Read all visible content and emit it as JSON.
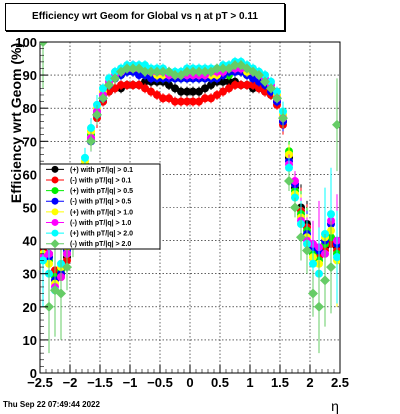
{
  "title": "Efficiency wrt Geom for Global vs η at pT > 0.11",
  "timestamp": "Thu Sep 22 07:49:44 2022",
  "chart_data": {
    "type": "scatter",
    "title": "Efficiency wrt Geom for Global vs η at pT > 0.11",
    "xlabel": "η",
    "ylabel": "Efficiency wrt Geom (%)",
    "xlim": [
      -2.5,
      2.5
    ],
    "ylim": [
      0,
      100
    ],
    "xticks": [
      "−2.5",
      "−2",
      "−1.5",
      "−1",
      "−0.5",
      "0",
      "0.5",
      "1",
      "1.5",
      "2",
      "2.5"
    ],
    "xtick_values": [
      -2.5,
      -2,
      -1.5,
      -1,
      -0.5,
      0,
      0.5,
      1,
      1.5,
      2,
      2.5
    ],
    "yticks": [
      "0",
      "10",
      "20",
      "30",
      "40",
      "50",
      "60",
      "70",
      "80",
      "90",
      "100"
    ],
    "ytick_values": [
      0,
      10,
      20,
      30,
      40,
      50,
      60,
      70,
      80,
      90,
      100
    ],
    "grid": true,
    "legend_placement": "middle-left",
    "series": [
      {
        "name": "(+) with pT/|q| > 0.1",
        "color": "#000000",
        "marker": "circle",
        "x": [
          -2.45,
          -2.35,
          -2.25,
          -2.15,
          -2.05,
          -1.95,
          -1.85,
          -1.75,
          -1.65,
          -1.55,
          -1.45,
          -1.35,
          -1.25,
          -1.15,
          -1.05,
          -0.95,
          -0.85,
          -0.75,
          -0.65,
          -0.55,
          -0.45,
          -0.35,
          -0.25,
          -0.15,
          -0.05,
          0.05,
          0.15,
          0.25,
          0.35,
          0.45,
          0.55,
          0.65,
          0.75,
          0.85,
          0.95,
          1.05,
          1.15,
          1.25,
          1.35,
          1.45,
          1.55,
          1.65,
          1.75,
          1.85,
          1.95,
          2.05,
          2.15,
          2.25,
          2.35,
          2.45
        ],
        "y": [
          38,
          36,
          30,
          30,
          35,
          46,
          52,
          62,
          70,
          78,
          82,
          85,
          86,
          86,
          87,
          87,
          87,
          88,
          88,
          88,
          88,
          87,
          86,
          85,
          85,
          85,
          85,
          86,
          87,
          88,
          88,
          88,
          88,
          87,
          87,
          86,
          86,
          85,
          84,
          82,
          76,
          65,
          56,
          50,
          45,
          37,
          36,
          38,
          40,
          38
        ]
      },
      {
        "name": "(-) with pT/|q| > 0.1",
        "color": "#ff0000",
        "marker": "circle",
        "x": [
          -2.45,
          -2.35,
          -2.25,
          -2.15,
          -2.05,
          -1.95,
          -1.85,
          -1.75,
          -1.65,
          -1.55,
          -1.45,
          -1.35,
          -1.25,
          -1.15,
          -1.05,
          -0.95,
          -0.85,
          -0.75,
          -0.65,
          -0.55,
          -0.45,
          -0.35,
          -0.25,
          -0.15,
          -0.05,
          0.05,
          0.15,
          0.25,
          0.35,
          0.45,
          0.55,
          0.65,
          0.75,
          0.85,
          0.95,
          1.05,
          1.15,
          1.25,
          1.35,
          1.45,
          1.55,
          1.65,
          1.75,
          1.85,
          1.95,
          2.05,
          2.15,
          2.25,
          2.35,
          2.45
        ],
        "y": [
          37,
          35,
          31,
          29,
          34,
          45,
          53,
          61,
          71,
          77,
          82,
          85,
          86,
          87,
          87,
          87,
          87,
          86,
          85,
          84,
          83,
          83,
          82,
          82,
          82,
          82,
          82,
          83,
          83,
          84,
          85,
          86,
          87,
          87,
          87,
          87,
          86,
          85,
          84,
          81,
          75,
          66,
          57,
          49,
          44,
          38,
          35,
          37,
          39,
          37
        ]
      },
      {
        "name": "(+) with pT/|q| > 0.5",
        "color": "#00ee00",
        "marker": "circle",
        "x": [
          -2.45,
          -2.35,
          -2.25,
          -2.15,
          -2.05,
          -1.95,
          -1.85,
          -1.75,
          -1.65,
          -1.55,
          -1.45,
          -1.35,
          -1.25,
          -1.15,
          -1.05,
          -0.95,
          -0.85,
          -0.75,
          -0.65,
          -0.55,
          -0.45,
          -0.35,
          -0.25,
          -0.15,
          -0.05,
          0.05,
          0.15,
          0.25,
          0.35,
          0.45,
          0.55,
          0.65,
          0.75,
          0.85,
          0.95,
          1.05,
          1.15,
          1.25,
          1.35,
          1.45,
          1.55,
          1.65,
          1.75,
          1.85,
          1.95,
          2.05,
          2.15,
          2.25,
          2.35,
          2.45
        ],
        "y": [
          39,
          34,
          29,
          31,
          36,
          47,
          54,
          63,
          72,
          79,
          84,
          87,
          89,
          90,
          91,
          91,
          91,
          90,
          90,
          89,
          89,
          89,
          89,
          89,
          89,
          89,
          89,
          89,
          89,
          90,
          90,
          90,
          91,
          91,
          90,
          90,
          89,
          88,
          86,
          83,
          77,
          67,
          55,
          48,
          43,
          36,
          34,
          39,
          41,
          36
        ]
      },
      {
        "name": "(-) with pT/|q| > 0.5",
        "color": "#0000ff",
        "marker": "circle",
        "x": [
          -2.45,
          -2.35,
          -2.25,
          -2.15,
          -2.05,
          -1.95,
          -1.85,
          -1.75,
          -1.65,
          -1.55,
          -1.45,
          -1.35,
          -1.25,
          -1.15,
          -1.05,
          -0.95,
          -0.85,
          -0.75,
          -0.65,
          -0.55,
          -0.45,
          -0.35,
          -0.25,
          -0.15,
          -0.05,
          0.05,
          0.15,
          0.25,
          0.35,
          0.45,
          0.55,
          0.65,
          0.75,
          0.85,
          0.95,
          1.05,
          1.15,
          1.25,
          1.35,
          1.45,
          1.55,
          1.65,
          1.75,
          1.85,
          1.95,
          2.05,
          2.15,
          2.25,
          2.35,
          2.45
        ],
        "y": [
          40,
          35,
          28,
          30,
          37,
          45,
          52,
          60,
          70,
          78,
          83,
          87,
          89,
          90,
          91,
          91,
          90,
          90,
          89,
          89,
          89,
          89,
          89,
          89,
          89,
          89,
          89,
          89,
          89,
          89,
          90,
          91,
          91,
          91,
          90,
          89,
          88,
          87,
          85,
          82,
          76,
          64,
          57,
          47,
          42,
          38,
          37,
          40,
          45,
          39
        ]
      },
      {
        "name": "(+) with pT/|q| > 1.0",
        "color": "#ffff00",
        "marker": "circle",
        "x": [
          -2.45,
          -2.35,
          -2.25,
          -2.15,
          -2.05,
          -1.95,
          -1.85,
          -1.75,
          -1.65,
          -1.55,
          -1.45,
          -1.35,
          -1.25,
          -1.15,
          -1.05,
          -0.95,
          -0.85,
          -0.75,
          -0.65,
          -0.55,
          -0.45,
          -0.35,
          -0.25,
          -0.15,
          -0.05,
          0.05,
          0.15,
          0.25,
          0.35,
          0.45,
          0.55,
          0.65,
          0.75,
          0.85,
          0.95,
          1.05,
          1.15,
          1.25,
          1.35,
          1.45,
          1.55,
          1.65,
          1.75,
          1.85,
          1.95,
          2.05,
          2.15,
          2.25,
          2.35,
          2.45
        ],
        "y": [
          36,
          33,
          27,
          32,
          38,
          48,
          55,
          64,
          73,
          80,
          85,
          88,
          90,
          91,
          92,
          92,
          92,
          92,
          91,
          90,
          90,
          90,
          90,
          90,
          90,
          90,
          90,
          90,
          90,
          90,
          91,
          92,
          92,
          92,
          91,
          91,
          90,
          89,
          87,
          84,
          78,
          66,
          54,
          47,
          41,
          35,
          33,
          41,
          43,
          34
        ]
      },
      {
        "name": "(-) with pT/|q| > 1.0",
        "color": "#ff00ff",
        "marker": "circle",
        "x": [
          -2.45,
          -2.35,
          -2.25,
          -2.15,
          -2.05,
          -1.95,
          -1.85,
          -1.75,
          -1.65,
          -1.55,
          -1.45,
          -1.35,
          -1.25,
          -1.15,
          -1.05,
          -0.95,
          -0.85,
          -0.75,
          -0.65,
          -0.55,
          -0.45,
          -0.35,
          -0.25,
          -0.15,
          -0.05,
          0.05,
          0.15,
          0.25,
          0.35,
          0.45,
          0.55,
          0.65,
          0.75,
          0.85,
          0.95,
          1.05,
          1.15,
          1.25,
          1.35,
          1.45,
          1.55,
          1.65,
          1.75,
          1.85,
          1.95,
          2.05,
          2.15,
          2.25,
          2.35,
          2.45
        ],
        "y": [
          35,
          36,
          26,
          29,
          36,
          44,
          51,
          62,
          71,
          79,
          84,
          88,
          90,
          91,
          92,
          93,
          92,
          92,
          91,
          91,
          91,
          90,
          90,
          90,
          90,
          90,
          90,
          90,
          91,
          91,
          91,
          92,
          92,
          92,
          92,
          91,
          90,
          89,
          87,
          83,
          77,
          63,
          58,
          46,
          40,
          39,
          38,
          36,
          46,
          40
        ]
      },
      {
        "name": "(+) with pT/|q| > 2.0",
        "color": "#00ffff",
        "marker": "circle",
        "x": [
          -2.45,
          -2.35,
          -2.25,
          -2.15,
          -2.05,
          -1.95,
          -1.85,
          -1.75,
          -1.65,
          -1.55,
          -1.45,
          -1.35,
          -1.25,
          -1.15,
          -1.05,
          -0.95,
          -0.85,
          -0.75,
          -0.65,
          -0.55,
          -0.45,
          -0.35,
          -0.25,
          -0.15,
          -0.05,
          0.05,
          0.15,
          0.25,
          0.35,
          0.45,
          0.55,
          0.65,
          0.75,
          0.85,
          0.95,
          1.05,
          1.15,
          1.25,
          1.35,
          1.45,
          1.55,
          1.65,
          1.75,
          1.85,
          1.95,
          2.05,
          2.15,
          2.25,
          2.35,
          2.45
        ],
        "y": [
          34,
          30,
          25,
          33,
          39,
          49,
          56,
          65,
          74,
          81,
          86,
          89,
          91,
          92,
          93,
          93,
          93,
          93,
          92,
          92,
          92,
          91,
          91,
          91,
          92,
          92,
          92,
          92,
          92,
          92,
          93,
          93,
          94,
          94,
          93,
          92,
          91,
          90,
          88,
          85,
          79,
          62,
          53,
          45,
          39,
          33,
          30,
          42,
          48,
          35
        ]
      },
      {
        "name": "(-) with pT/|q| > 2.0",
        "color": "#66cc66",
        "marker": "diamond",
        "x": [
          -2.45,
          -2.35,
          -2.25,
          -2.15,
          -2.05,
          -1.95,
          -1.85,
          -1.75,
          -1.65,
          -1.55,
          -1.45,
          -1.35,
          -1.25,
          -1.15,
          -1.05,
          -0.95,
          -0.85,
          -0.75,
          -0.65,
          -0.55,
          -0.45,
          -0.35,
          -0.25,
          -0.15,
          -0.05,
          0.05,
          0.15,
          0.25,
          0.35,
          0.45,
          0.55,
          0.65,
          0.75,
          0.85,
          0.95,
          1.05,
          1.15,
          1.25,
          1.35,
          1.45,
          1.55,
          1.65,
          1.75,
          1.85,
          1.95,
          2.05,
          2.15,
          2.25,
          2.35,
          2.45
        ],
        "y": [
          100,
          20,
          25,
          24,
          32,
          42,
          50,
          60,
          70,
          78,
          83,
          87,
          89,
          91,
          92,
          92,
          92,
          91,
          91,
          91,
          91,
          91,
          90,
          90,
          91,
          91,
          91,
          91,
          91,
          92,
          92,
          92,
          93,
          93,
          92,
          91,
          90,
          88,
          86,
          83,
          77,
          58,
          50,
          41,
          37,
          24,
          20,
          28,
          32,
          75
        ]
      }
    ]
  }
}
